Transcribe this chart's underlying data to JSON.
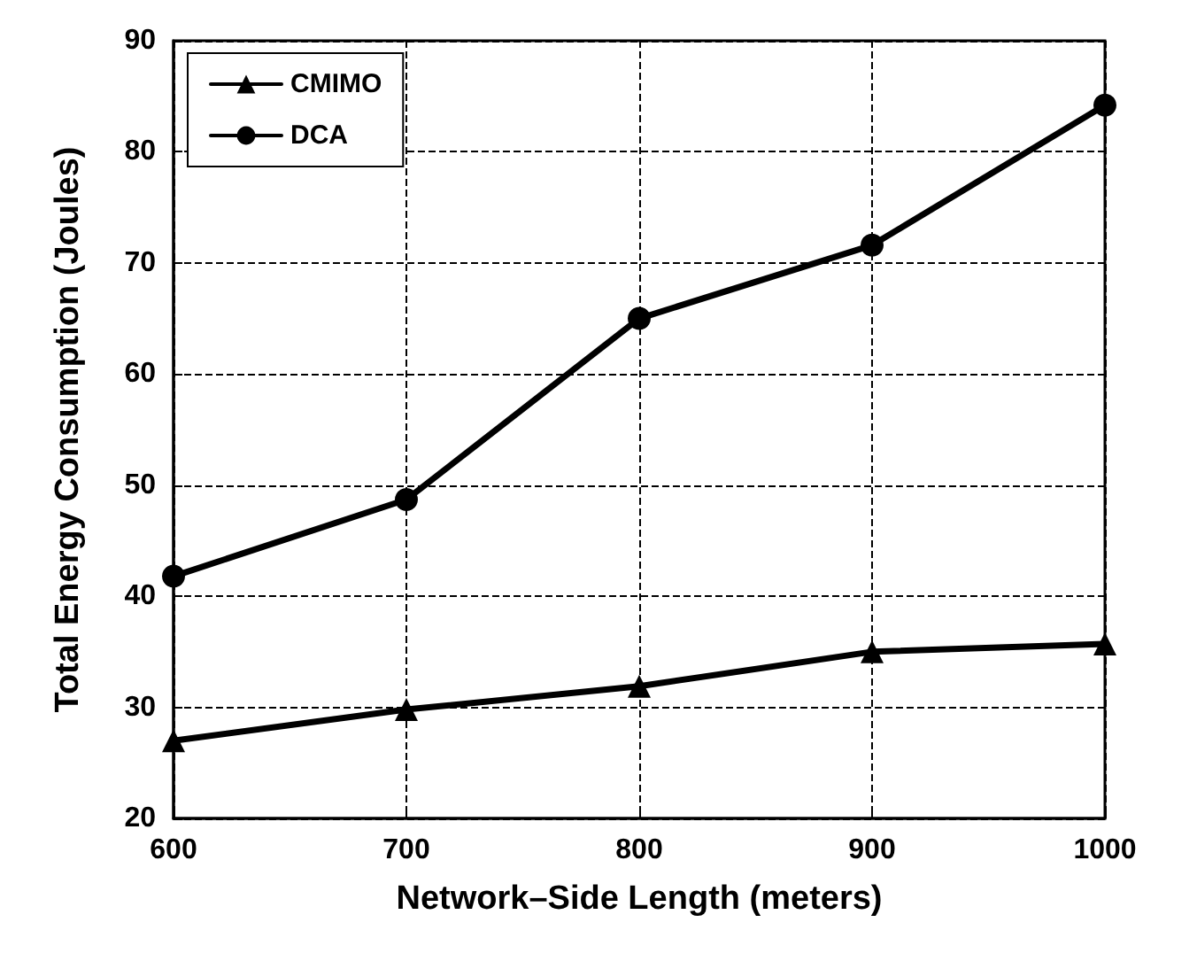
{
  "chart_data": {
    "type": "line",
    "xlabel": "Network–Side Length (meters)",
    "ylabel": "Total Energy Consumption (Joules)",
    "x": [
      600,
      700,
      800,
      900,
      1000
    ],
    "series": [
      {
        "name": "CMIMO",
        "color": "#000000",
        "marker": "triangle",
        "values": [
          27,
          29.8,
          31.9,
          35,
          35.7
        ]
      },
      {
        "name": "DCA",
        "color": "#000000",
        "marker": "circle",
        "values": [
          41.8,
          48.7,
          65,
          71.6,
          84.2
        ]
      }
    ],
    "xlim": [
      600,
      1000
    ],
    "xticks": [
      600,
      700,
      800,
      900,
      1000
    ],
    "ylim": [
      20,
      90
    ],
    "yticks": [
      20,
      30,
      40,
      50,
      60,
      70,
      80,
      90
    ],
    "grid": true,
    "legend": "top left",
    "line_style": "solid"
  }
}
